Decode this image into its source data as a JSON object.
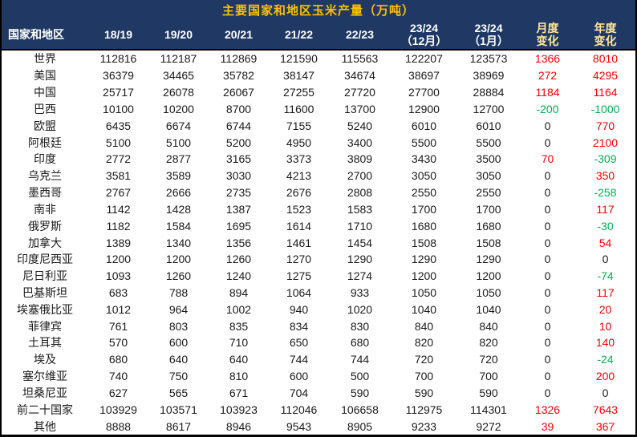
{
  "title": "主要国家和地区玉米产量（万吨）",
  "colors": {
    "header_bg": "#1F3864",
    "title_text": "#FFC000",
    "header_text": "#FFFFFF",
    "change_header_text": "#FFE699",
    "positive": "#FF0000",
    "negative": "#00B050",
    "zero": "#1a1a1a",
    "body_text": "#1a1a1a"
  },
  "chart_data": {
    "type": "table",
    "title": "主要国家和地区玉米产量（万吨）",
    "unit": "万吨",
    "columns": [
      {
        "l1": "国家和地区",
        "l2": ""
      },
      {
        "l1": "18/19",
        "l2": ""
      },
      {
        "l1": "19/20",
        "l2": ""
      },
      {
        "l1": "20/21",
        "l2": ""
      },
      {
        "l1": "21/22",
        "l2": ""
      },
      {
        "l1": "22/23",
        "l2": ""
      },
      {
        "l1": "23/24",
        "l2": "（12月）"
      },
      {
        "l1": "23/24",
        "l2": "（1月）"
      },
      {
        "l1": "月度",
        "l2": "变化"
      },
      {
        "l1": "年度",
        "l2": "变化"
      }
    ],
    "rows": [
      {
        "name": "世界",
        "values": [
          112816,
          112187,
          112869,
          121590,
          115563,
          122207,
          123573
        ],
        "monthly_change": 1366,
        "yearly_change": 8010
      },
      {
        "name": "美国",
        "values": [
          36379,
          34465,
          35782,
          38147,
          34674,
          38697,
          38969
        ],
        "monthly_change": 272,
        "yearly_change": 4295
      },
      {
        "name": "中国",
        "values": [
          25717,
          26078,
          26067,
          27255,
          27720,
          27700,
          28884
        ],
        "monthly_change": 1184,
        "yearly_change": 1164
      },
      {
        "name": "巴西",
        "values": [
          10100,
          10200,
          8700,
          11600,
          13700,
          12900,
          12700
        ],
        "monthly_change": -200,
        "yearly_change": -1000
      },
      {
        "name": "欧盟",
        "values": [
          6435,
          6674,
          6744,
          7155,
          5240,
          6010,
          6010
        ],
        "monthly_change": 0,
        "yearly_change": 770
      },
      {
        "name": "阿根廷",
        "values": [
          5100,
          5100,
          5200,
          4950,
          3400,
          5500,
          5500
        ],
        "monthly_change": 0,
        "yearly_change": 2100
      },
      {
        "name": "印度",
        "values": [
          2772,
          2877,
          3165,
          3373,
          3809,
          3430,
          3500
        ],
        "monthly_change": 70,
        "yearly_change": -309
      },
      {
        "name": "乌克兰",
        "values": [
          3581,
          3589,
          3030,
          4213,
          2700,
          3050,
          3050
        ],
        "monthly_change": 0,
        "yearly_change": 350
      },
      {
        "name": "墨西哥",
        "values": [
          2767,
          2666,
          2735,
          2676,
          2808,
          2550,
          2550
        ],
        "monthly_change": 0,
        "yearly_change": -258
      },
      {
        "name": "南非",
        "values": [
          1142,
          1428,
          1387,
          1523,
          1583,
          1700,
          1700
        ],
        "monthly_change": 0,
        "yearly_change": 117
      },
      {
        "name": "俄罗斯",
        "values": [
          1182,
          1584,
          1695,
          1614,
          1710,
          1680,
          1680
        ],
        "monthly_change": 0,
        "yearly_change": -30
      },
      {
        "name": "加拿大",
        "values": [
          1389,
          1340,
          1356,
          1461,
          1454,
          1508,
          1508
        ],
        "monthly_change": 0,
        "yearly_change": 54
      },
      {
        "name": "印度尼西亚",
        "values": [
          1200,
          1200,
          1260,
          1270,
          1290,
          1290,
          1290
        ],
        "monthly_change": 0,
        "yearly_change": 0
      },
      {
        "name": "尼日利亚",
        "values": [
          1093,
          1260,
          1240,
          1275,
          1274,
          1200,
          1200
        ],
        "monthly_change": 0,
        "yearly_change": -74
      },
      {
        "name": "巴基斯坦",
        "values": [
          683,
          788,
          894,
          1064,
          933,
          1050,
          1050
        ],
        "monthly_change": 0,
        "yearly_change": 117
      },
      {
        "name": "埃塞俄比亚",
        "values": [
          1012,
          964,
          1002,
          940,
          1020,
          1040,
          1040
        ],
        "monthly_change": 0,
        "yearly_change": 20
      },
      {
        "name": "菲律宾",
        "values": [
          761,
          803,
          835,
          834,
          830,
          840,
          840
        ],
        "monthly_change": 0,
        "yearly_change": 10
      },
      {
        "name": "土耳其",
        "values": [
          570,
          600,
          710,
          650,
          680,
          820,
          820
        ],
        "monthly_change": 0,
        "yearly_change": 140
      },
      {
        "name": "埃及",
        "values": [
          680,
          640,
          640,
          744,
          744,
          720,
          720
        ],
        "monthly_change": 0,
        "yearly_change": -24
      },
      {
        "name": "塞尔维亚",
        "values": [
          740,
          750,
          810,
          600,
          500,
          700,
          700
        ],
        "monthly_change": 0,
        "yearly_change": 200
      },
      {
        "name": "坦桑尼亚",
        "values": [
          627,
          565,
          671,
          704,
          590,
          590,
          590
        ],
        "monthly_change": 0,
        "yearly_change": 0
      },
      {
        "name": "前二十国家",
        "values": [
          103929,
          103571,
          103923,
          112046,
          106658,
          112975,
          114301
        ],
        "monthly_change": 1326,
        "yearly_change": 7643
      },
      {
        "name": "其他",
        "values": [
          8888,
          8617,
          8946,
          9543,
          8905,
          9233,
          9272
        ],
        "monthly_change": 39,
        "yearly_change": 367
      }
    ]
  }
}
